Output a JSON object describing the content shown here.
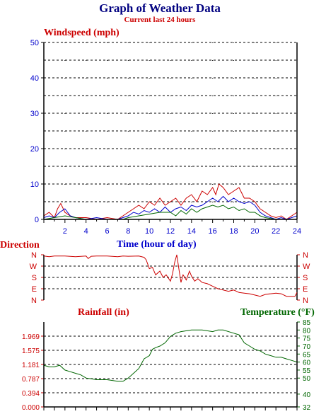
{
  "header": {
    "title": "Graph of Weather Data",
    "subtitle": "Current last 24 hours"
  },
  "colors": {
    "navy": "#000080",
    "red": "#cc0000",
    "blue": "#0000cc",
    "green": "#006600",
    "axis": "#000000",
    "grid": "#000000"
  },
  "chart_data": [
    {
      "type": "line",
      "title": "Windspeed (mph)",
      "xlabel": "Time (hour of day)",
      "xlim": [
        0,
        24
      ],
      "ylim": [
        0,
        50
      ],
      "x_ticks": [
        2,
        4,
        6,
        8,
        10,
        12,
        14,
        16,
        18,
        20,
        22,
        24
      ],
      "y_ticks": [
        0,
        10,
        20,
        30,
        40,
        50
      ],
      "grid": true,
      "series": [
        {
          "color": "#cc0000",
          "x": [
            0,
            0.5,
            1,
            1.3,
            1.6,
            2,
            2.5,
            3,
            4,
            5,
            6,
            7,
            7.5,
            8,
            8.5,
            9,
            9.5,
            10,
            10.5,
            11,
            11.5,
            12,
            12.5,
            13,
            13.5,
            14,
            14.5,
            15,
            15.5,
            16,
            16.3,
            16.6,
            17,
            17.5,
            18,
            18.5,
            19,
            19.5,
            20,
            20.5,
            21,
            21.5,
            22,
            22.5,
            23,
            23.5,
            24
          ],
          "y": [
            1,
            2,
            0.5,
            3,
            4.5,
            2,
            1,
            0.5,
            0.5,
            0,
            0.5,
            0,
            1,
            2,
            3,
            4,
            3,
            5,
            4,
            6,
            4,
            5,
            6,
            4,
            6,
            7,
            5,
            8,
            7,
            9,
            7,
            10,
            9,
            7,
            8,
            9,
            6,
            6,
            5,
            3,
            2,
            1,
            0.5,
            1,
            0,
            1,
            2
          ]
        },
        {
          "color": "#0000cc",
          "x": [
            0,
            0.5,
            1,
            1.5,
            2,
            2.5,
            3,
            4,
            5,
            6,
            7,
            7.5,
            8,
            8.5,
            9,
            9.5,
            10,
            10.5,
            11,
            11.5,
            12,
            12.5,
            13,
            13.5,
            14,
            14.5,
            15,
            15.5,
            16,
            16.5,
            17,
            17.5,
            18,
            18.5,
            19,
            19.5,
            20,
            20.5,
            21,
            21.5,
            22,
            22.5,
            23,
            23.5,
            24
          ],
          "y": [
            0.5,
            1,
            0.5,
            2,
            3,
            1,
            0.5,
            0,
            0.5,
            0,
            0,
            0.5,
            1,
            2,
            1.5,
            2.5,
            2,
            3,
            2,
            3.5,
            2,
            3,
            3.5,
            2.5,
            4,
            3.5,
            4,
            5,
            6,
            5,
            6.5,
            5,
            6,
            5,
            4.5,
            5,
            4,
            2,
            1,
            0.5,
            0,
            0.5,
            0,
            0.5,
            1
          ]
        },
        {
          "color": "#006600",
          "x": [
            0,
            1,
            2,
            3,
            4,
            6,
            7.5,
            8,
            9,
            10,
            11,
            12,
            12.5,
            13,
            13.5,
            14,
            14.5,
            15,
            15.5,
            16,
            16.5,
            17,
            17.5,
            18,
            18.5,
            19,
            19.5,
            20,
            20.5,
            21,
            22,
            23,
            24
          ],
          "y": [
            0,
            0.5,
            1,
            0.5,
            0,
            0,
            0,
            0.5,
            1,
            1.5,
            2,
            2,
            1,
            2.5,
            1.5,
            3,
            2,
            3,
            3.5,
            4,
            3.5,
            4,
            3,
            3.5,
            2.5,
            3,
            2,
            2,
            1,
            0.5,
            0,
            0,
            0
          ]
        }
      ]
    },
    {
      "type": "line",
      "title": "Direction",
      "y_ticks": [
        "N",
        "W",
        "S",
        "E",
        "N"
      ],
      "grid": true,
      "series": [
        {
          "color": "#cc0000",
          "x": [
            0,
            0.5,
            1,
            2,
            3,
            4,
            4.2,
            4.5,
            5,
            6,
            7,
            7.5,
            8,
            9,
            9.5,
            9.7,
            10,
            10.3,
            10.6,
            11,
            11.3,
            11.6,
            12,
            12.2,
            12.4,
            12.6,
            12.8,
            13,
            13.2,
            13.5,
            13.8,
            14,
            14.3,
            14.6,
            15,
            15.5,
            16,
            16.5,
            17,
            17.5,
            18,
            18.5,
            19,
            19.5,
            20,
            20.5,
            21,
            21.5,
            22,
            22.5,
            23,
            23.5,
            23.8,
            24
          ],
          "y": [
            350,
            345,
            350,
            350,
            345,
            350,
            330,
            348,
            350,
            350,
            345,
            350,
            348,
            350,
            340,
            320,
            250,
            260,
            200,
            230,
            180,
            200,
            150,
            210,
            300,
            360,
            250,
            140,
            200,
            160,
            230,
            190,
            150,
            170,
            140,
            130,
            110,
            90,
            80,
            70,
            80,
            60,
            55,
            50,
            40,
            30,
            45,
            50,
            55,
            50,
            30,
            30,
            30,
            60
          ]
        }
      ]
    },
    {
      "type": "line",
      "title": "Temperature (°F)",
      "ylabel": "Rainfall (in)",
      "ylim_left": [
        0.0,
        2.362
      ],
      "y_ticks_left": [
        "0.000",
        "0.394",
        "0.787",
        "1.181",
        "1.575",
        "1.969"
      ],
      "ylim_right": [
        32,
        85
      ],
      "y_ticks_right": [
        32,
        40,
        50,
        55,
        60,
        65,
        70,
        75,
        80,
        85
      ],
      "grid": true,
      "series": [
        {
          "name": "Rainfall (in)",
          "color": "#cc0000",
          "x": [
            0,
            24
          ],
          "y": [
            0,
            0
          ]
        },
        {
          "name": "Temperature (°F)",
          "color": "#006600",
          "x": [
            0,
            0.5,
            1,
            1.5,
            2,
            2.5,
            3,
            3.5,
            4,
            5,
            6,
            7,
            7.5,
            8,
            8.5,
            9,
            9.5,
            10,
            10.3,
            10.6,
            11,
            11.5,
            12,
            12.5,
            13,
            14,
            15,
            16,
            16.5,
            17,
            18,
            18.5,
            19,
            19.5,
            20,
            20.5,
            21,
            21.5,
            22,
            22.5,
            23,
            23.5,
            24
          ],
          "y": [
            58,
            57,
            57,
            58,
            55,
            54,
            53,
            52,
            50,
            49,
            49,
            48,
            48,
            50,
            53,
            56,
            62,
            64,
            68,
            69,
            70,
            72,
            76,
            78,
            79,
            80,
            80,
            79,
            80,
            80,
            78,
            77,
            72,
            70,
            68,
            67,
            65,
            64,
            63,
            63,
            62,
            61,
            60
          ]
        }
      ]
    }
  ]
}
